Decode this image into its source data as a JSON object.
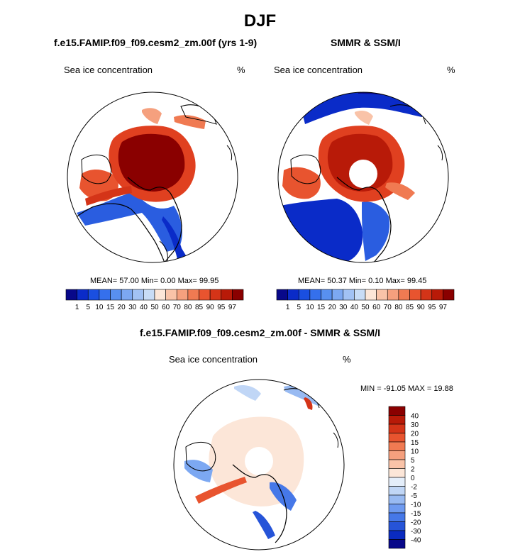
{
  "page": {
    "title": "DJF",
    "left_title": "f.e15.FAMIP.f09_f09.cesm2_zm.00f (yrs 1-9)",
    "right_title": "SMMR & SSM/I",
    "diff_title": "f.e15.FAMIP.f09_f09.cesm2_zm.00f - SMMR & SSM/I"
  },
  "colors": {
    "ocean": "#ffffff",
    "land_outline": "#000000",
    "pole_hole": "#ffffff"
  },
  "chart_data": [
    {
      "type": "heatmap",
      "projection": "north-polar-stereographic",
      "title": "f.e15.FAMIP.f09_f09.cesm2_zm.00f (yrs 1-9)",
      "variable": "Sea ice concentration",
      "units": "%",
      "stats": {
        "mean_label": "MEAN=",
        "mean": "57.00",
        "min_label": "Min=",
        "min": "0.00",
        "max_label": "Max=",
        "max": "99.95"
      },
      "colorbar": {
        "orientation": "horizontal",
        "ticks": [
          "1",
          "5",
          "10",
          "15",
          "20",
          "30",
          "40",
          "50",
          "60",
          "70",
          "80",
          "85",
          "90",
          "95",
          "97"
        ],
        "colors": [
          "#08088a",
          "#0a2bc8",
          "#1a4fe0",
          "#3570ec",
          "#5890f0",
          "#7ca8f2",
          "#a2c2f4",
          "#c8dcf6",
          "#fce6d8",
          "#f9c3a8",
          "#f5a07e",
          "#f07a52",
          "#e8542f",
          "#d43418",
          "#b81a08",
          "#8a0000"
        ]
      }
    },
    {
      "type": "heatmap",
      "projection": "north-polar-stereographic",
      "title": "SMMR & SSM/I",
      "variable": "Sea ice concentration",
      "units": "%",
      "stats": {
        "mean_label": "MEAN=",
        "mean": "50.37",
        "min_label": "Min=",
        "min": "0.10",
        "max_label": "Max=",
        "max": "99.45"
      },
      "colorbar": {
        "orientation": "horizontal",
        "ticks": [
          "1",
          "5",
          "10",
          "15",
          "20",
          "30",
          "40",
          "50",
          "60",
          "70",
          "80",
          "85",
          "90",
          "95",
          "97"
        ],
        "colors": [
          "#08088a",
          "#0a2bc8",
          "#1a4fe0",
          "#3570ec",
          "#5890f0",
          "#7ca8f2",
          "#a2c2f4",
          "#c8dcf6",
          "#fce6d8",
          "#f9c3a8",
          "#f5a07e",
          "#f07a52",
          "#e8542f",
          "#d43418",
          "#b81a08",
          "#8a0000"
        ]
      }
    },
    {
      "type": "heatmap",
      "projection": "north-polar-stereographic",
      "title": "f.e15.FAMIP.f09_f09.cesm2_zm.00f - SMMR & SSM/I",
      "variable": "Sea ice concentration",
      "units": "%",
      "stats_text": "MIN = -91.05 MAX =  19.88",
      "colorbar": {
        "orientation": "vertical",
        "ticks": [
          "40",
          "30",
          "20",
          "15",
          "10",
          "5",
          "2",
          "0",
          "-2",
          "-5",
          "-10",
          "-15",
          "-20",
          "-30",
          "-40"
        ],
        "colors": [
          "#8a0000",
          "#b81a08",
          "#d43418",
          "#e8542f",
          "#f07a52",
          "#f5a07e",
          "#f9c3a8",
          "#fce6d8",
          "#e4eefa",
          "#c0d6f6",
          "#98baf2",
          "#6e9af0",
          "#4678e8",
          "#2654d8",
          "#0a2bc0",
          "#08088a"
        ]
      }
    }
  ]
}
